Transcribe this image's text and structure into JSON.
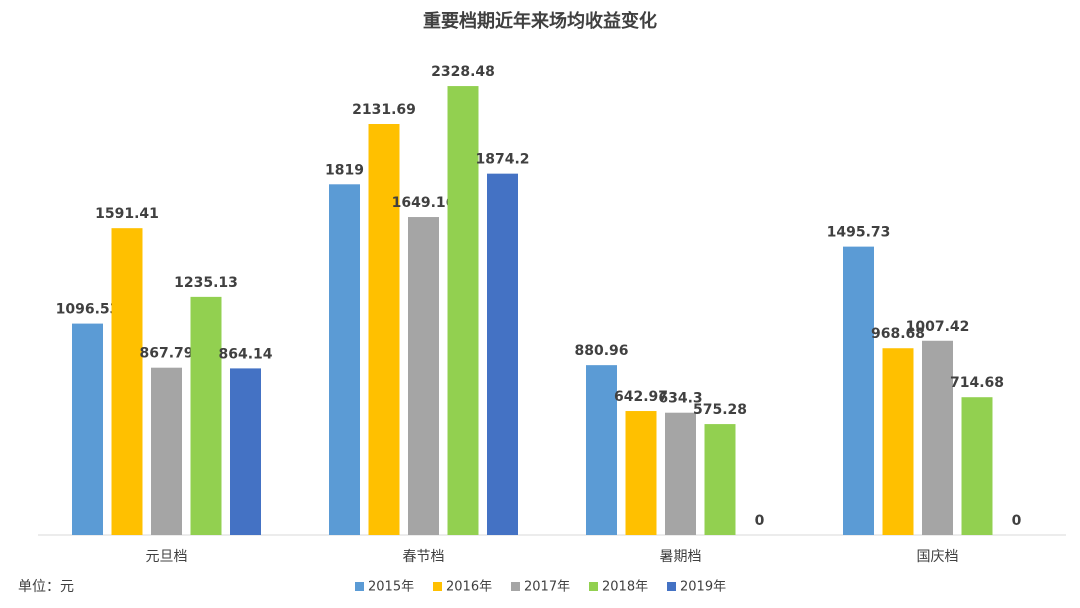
{
  "chart_data": {
    "type": "bar",
    "title": "重要档期近年来场均收益变化",
    "unit_note": "单位：元",
    "categories": [
      "元旦档",
      "春节档",
      "暑期档",
      "国庆档"
    ],
    "series": [
      {
        "name": "2015年",
        "color": "#5b9bd5",
        "values": [
          1096.53,
          1819,
          880.96,
          1495.73
        ]
      },
      {
        "name": "2016年",
        "color": "#ffc000",
        "values": [
          1591.41,
          2131.69,
          642.97,
          968.68
        ]
      },
      {
        "name": "2017年",
        "color": "#a5a5a5",
        "values": [
          867.79,
          1649.16,
          634.3,
          1007.42
        ]
      },
      {
        "name": "2018年",
        "color": "#92d050",
        "values": [
          1235.13,
          2328.48,
          575.28,
          714.68
        ]
      },
      {
        "name": "2019年",
        "color": "#4472c4",
        "values": [
          864.14,
          1874.2,
          0,
          0
        ]
      }
    ],
    "ylim": [
      0,
      2500
    ],
    "grid": false,
    "legend": "bottom"
  }
}
